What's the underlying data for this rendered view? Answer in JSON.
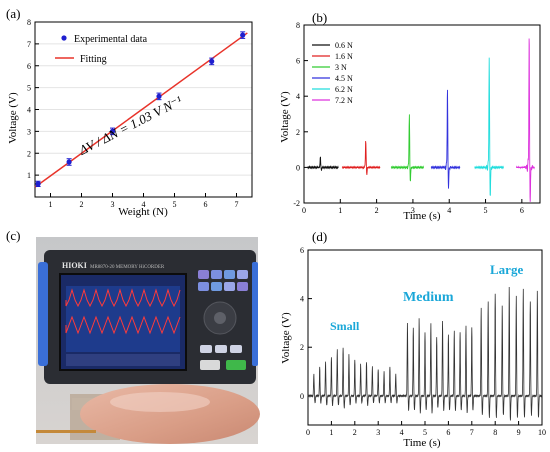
{
  "panel_labels": [
    "(a)",
    "(b)",
    "(c)",
    "(d)"
  ],
  "chart_data": [
    {
      "panel": "(a)",
      "type": "scatter",
      "xlabel": "Weight (N)",
      "ylabel": "Voltage (V)",
      "xlim": [
        0.5,
        7.5
      ],
      "ylim": [
        0,
        8
      ],
      "xticks": [
        1,
        2,
        3,
        4,
        5,
        6,
        7
      ],
      "yticks": [
        1,
        2,
        3,
        4,
        5,
        6,
        7,
        8
      ],
      "legend": [
        "Experimental data",
        "Fitting"
      ],
      "legend_position": "top-left",
      "annotation": "ΔV / ΔN = 1.03 V N⁻¹",
      "series": [
        {
          "name": "Experimental data",
          "x": [
            0.6,
            1.6,
            3.0,
            4.5,
            6.2,
            7.2
          ],
          "y": [
            0.6,
            1.6,
            3.0,
            4.6,
            6.2,
            7.4
          ],
          "yerr": [
            0.12,
            0.15,
            0.15,
            0.15,
            0.15,
            0.15
          ],
          "color": "#1f1fcf"
        },
        {
          "name": "Fitting",
          "x": [
            0.5,
            7.35
          ],
          "y": [
            0.45,
            7.5
          ],
          "color": "#e8332a"
        }
      ]
    },
    {
      "panel": "(b)",
      "type": "line",
      "xlabel": "Time (s)",
      "ylabel": "Voltage (V)",
      "xlim": [
        0,
        6.5
      ],
      "ylim": [
        -2,
        8
      ],
      "xticks": [
        0,
        1,
        2,
        3,
        4,
        5,
        6
      ],
      "yticks": [
        -2,
        0,
        2,
        4,
        6,
        8
      ],
      "legend_position": "top-left",
      "series": [
        {
          "name": "0.6 N",
          "color": "#111111",
          "x_range": [
            0.1,
            0.95
          ],
          "peak_t": 0.45,
          "peak_v": 0.6
        },
        {
          "name": "1.6 N",
          "color": "#e02020",
          "x_range": [
            1.05,
            2.1
          ],
          "peak_t": 1.7,
          "peak_v": 1.6
        },
        {
          "name": "3 N",
          "color": "#33cc33",
          "x_range": [
            2.4,
            3.3
          ],
          "peak_t": 2.9,
          "peak_v": 3.0
        },
        {
          "name": "4.5 N",
          "color": "#3333dd",
          "x_range": [
            3.5,
            4.3
          ],
          "peak_t": 3.95,
          "peak_v": 4.5
        },
        {
          "name": "6.2 N",
          "color": "#22dddd",
          "x_range": [
            4.7,
            5.5
          ],
          "peak_t": 5.1,
          "peak_v": 6.2
        },
        {
          "name": "7.2 N",
          "color": "#dd33dd",
          "x_range": [
            5.85,
            6.35
          ],
          "peak_t": 6.2,
          "peak_v": 7.3
        }
      ]
    },
    {
      "panel": "(d)",
      "type": "line",
      "xlabel": "Time (s)",
      "ylabel": "Voltage (V)",
      "xlim": [
        0,
        10
      ],
      "ylim": [
        -1.2,
        6
      ],
      "xticks": [
        0,
        1,
        2,
        3,
        4,
        5,
        6,
        7,
        8,
        9,
        10
      ],
      "yticks": [
        0,
        2,
        4,
        6
      ],
      "annotations": [
        {
          "text": "Small",
          "color": "#1aa7d8"
        },
        {
          "text": "Medium",
          "color": "#1aa7d8"
        },
        {
          "text": "Large",
          "color": "#1aa7d8"
        }
      ],
      "series": [
        {
          "name": "",
          "color": "#333333",
          "peak_times": [
            0.25,
            0.5,
            0.75,
            1.0,
            1.25,
            1.5,
            1.75,
            2.0,
            2.25,
            2.5,
            2.75,
            3.0,
            3.25,
            3.5,
            3.75,
            4.25,
            4.5,
            4.75,
            5.0,
            5.25,
            5.5,
            5.75,
            6.0,
            6.25,
            6.5,
            6.75,
            7.0,
            7.4,
            7.7,
            8.0,
            8.3,
            8.6,
            8.9,
            9.2,
            9.5,
            9.8
          ],
          "peak_values": [
            0.9,
            1.2,
            1.4,
            1.6,
            1.9,
            2.0,
            1.7,
            1.5,
            1.3,
            1.4,
            1.2,
            1.1,
            1.0,
            1.2,
            0.9,
            3.0,
            2.8,
            3.2,
            2.6,
            3.0,
            2.4,
            3.1,
            2.5,
            2.7,
            2.6,
            2.9,
            2.8,
            3.6,
            3.9,
            4.2,
            3.7,
            4.5,
            4.1,
            4.4,
            3.9,
            4.3
          ],
          "trough_values": [
            -0.3,
            -0.3,
            -0.4,
            -0.4,
            -0.4,
            -0.5,
            -0.4,
            -0.3,
            -0.3,
            -0.4,
            -0.3,
            -0.3,
            -0.3,
            -0.3,
            -0.3,
            -0.6,
            -0.6,
            -0.7,
            -0.6,
            -0.7,
            -0.5,
            -0.6,
            -0.6,
            -0.6,
            -0.6,
            -0.7,
            -0.6,
            -0.8,
            -0.9,
            -0.9,
            -0.8,
            -1.0,
            -0.9,
            -0.9,
            -0.8,
            -0.9
          ]
        }
      ]
    }
  ],
  "photo": {
    "panel": "(c)",
    "device_brand": "HIOKI",
    "device_model": "MR8870-20 MEMORY HiCORDER"
  }
}
